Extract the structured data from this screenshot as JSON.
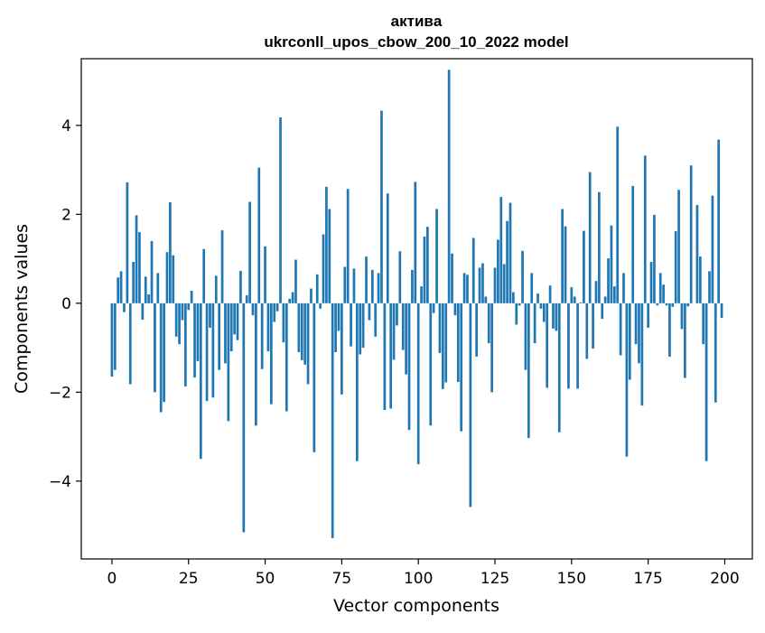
{
  "chart_data": {
    "type": "bar",
    "title": "активa",
    "subtitle": "ukrconll_upos_cbow_200_10_2022 model",
    "xlabel": "Vector components",
    "ylabel": "Components values",
    "xlim": [
      -10,
      209
    ],
    "ylim": [
      -5.75,
      5.5
    ],
    "xticks": [
      0,
      25,
      50,
      75,
      100,
      125,
      150,
      175,
      200
    ],
    "yticks": [
      -4,
      -2,
      0,
      2,
      4
    ],
    "ytick_labels": [
      "−4",
      "−2",
      "0",
      "2",
      "4"
    ],
    "grid": false,
    "bar_color": "#1f77b4",
    "values": [
      -1.65,
      -1.5,
      0.58,
      0.72,
      -0.2,
      2.72,
      -1.82,
      0.93,
      1.98,
      1.6,
      -0.37,
      0.6,
      0.2,
      1.4,
      -2.0,
      0.68,
      -2.45,
      -2.22,
      1.15,
      2.27,
      1.08,
      -0.75,
      -0.92,
      -0.38,
      -1.87,
      -0.15,
      0.28,
      -1.67,
      -1.3,
      -3.5,
      1.22,
      -2.2,
      -0.55,
      -2.12,
      0.62,
      -1.5,
      1.64,
      -1.35,
      -2.65,
      -1.08,
      -0.7,
      -0.83,
      0.73,
      -5.15,
      0.18,
      2.28,
      -0.27,
      -2.75,
      3.05,
      -1.48,
      1.28,
      -1.08,
      -2.27,
      -0.42,
      -0.18,
      4.18,
      -0.88,
      -2.43,
      0.1,
      0.25,
      0.98,
      -1.1,
      -1.28,
      -1.38,
      -1.82,
      0.33,
      -3.35,
      0.65,
      -0.12,
      1.55,
      2.62,
      2.12,
      -5.28,
      -1.1,
      -0.62,
      -2.05,
      0.82,
      2.57,
      -0.97,
      0.78,
      -3.55,
      -1.15,
      -1.0,
      1.05,
      -0.38,
      0.75,
      -0.75,
      0.68,
      4.33,
      -2.4,
      2.47,
      -2.37,
      -1.27,
      -0.5,
      1.17,
      -1.05,
      -1.6,
      -2.85,
      0.75,
      2.73,
      -3.62,
      0.38,
      1.5,
      1.72,
      -2.75,
      -0.22,
      2.12,
      -1.12,
      -1.93,
      -1.78,
      5.25,
      1.12,
      -0.27,
      -1.77,
      -2.88,
      0.68,
      0.64,
      -4.58,
      1.47,
      -1.2,
      0.8,
      0.9,
      0.15,
      -0.9,
      -2.0,
      0.8,
      1.43,
      2.39,
      0.88,
      1.85,
      2.26,
      0.25,
      -0.48,
      -0.05,
      1.18,
      -1.5,
      -3.03,
      0.68,
      -0.9,
      0.22,
      -0.12,
      -0.42,
      -1.9,
      0.4,
      -0.57,
      -0.62,
      -2.9,
      2.12,
      1.73,
      -1.92,
      0.36,
      0.15,
      -1.92,
      0.02,
      1.63,
      -1.25,
      2.95,
      -1.02,
      0.5,
      2.5,
      -0.35,
      0.15,
      1.01,
      1.75,
      0.38,
      3.97,
      -1.17,
      0.68,
      -3.45,
      -1.72,
      2.64,
      -0.92,
      -1.35,
      -2.3,
      3.32,
      -0.55,
      0.93,
      1.99,
      -0.05,
      0.68,
      0.42,
      -0.05,
      -1.2,
      -0.08,
      1.62,
      2.55,
      -0.58,
      -1.68,
      -0.07,
      3.1,
      0.0,
      2.21,
      1.05,
      -0.92,
      -3.55,
      0.72,
      2.42,
      -2.23,
      3.68,
      -0.33
    ]
  }
}
